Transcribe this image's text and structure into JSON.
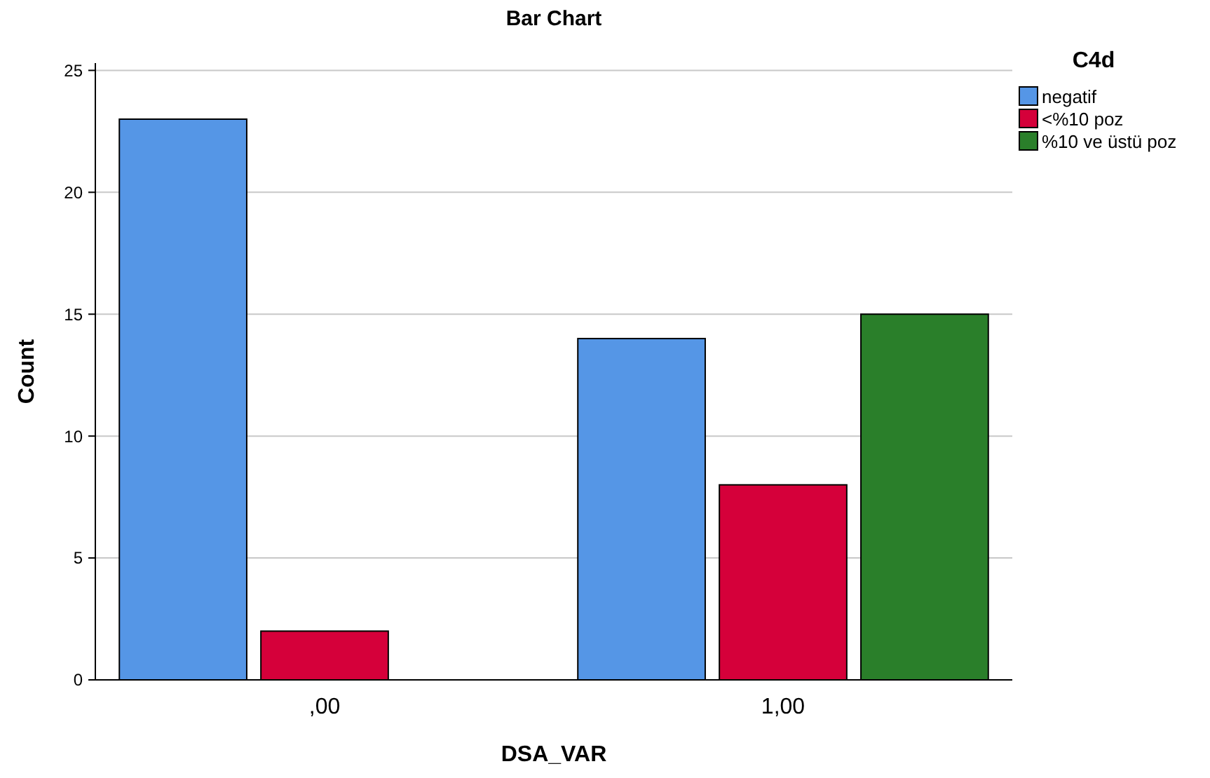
{
  "chart_data": {
    "type": "bar",
    "title": "Bar Chart",
    "xlabel": "DSA_VAR",
    "ylabel": "Count",
    "legend_title": "C4d",
    "categories": [
      ",00",
      "1,00"
    ],
    "series": [
      {
        "name": "negatif",
        "color": "#5596e6",
        "values": [
          23,
          14
        ]
      },
      {
        "name": "<%10 poz",
        "color": "#d5003a",
        "values": [
          2,
          8
        ]
      },
      {
        "name": "%10 ve üstü poz",
        "color": "#2a7f2a",
        "values": [
          null,
          15
        ]
      }
    ],
    "ylim": [
      0,
      25.3
    ],
    "yticks": [
      0,
      5,
      10,
      15,
      20,
      25
    ],
    "grid": "y",
    "legend": "top right"
  }
}
